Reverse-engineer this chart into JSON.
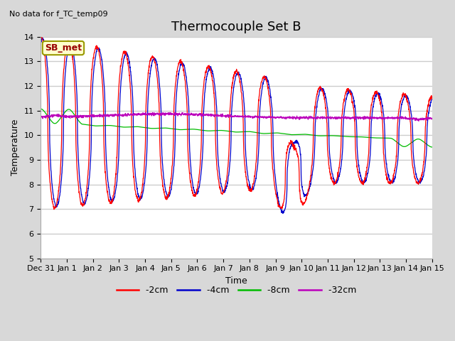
{
  "title": "Thermocouple Set B",
  "xlabel": "Time",
  "ylabel": "Temperature",
  "top_left_note": "No data for f_TC_temp09",
  "legend_box_label": "SB_met",
  "ylim": [
    5.0,
    14.0
  ],
  "yticks": [
    5.0,
    6.0,
    7.0,
    8.0,
    9.0,
    10.0,
    11.0,
    12.0,
    13.0,
    14.0
  ],
  "xtick_labels": [
    "Dec 31",
    "Jan 1",
    "Jan 2",
    "Jan 3",
    "Jan 4",
    "Jan 5",
    "Jan 6",
    "Jan 7",
    "Jan 8",
    "Jan 9",
    "Jan 10",
    "Jan 11",
    "Jan 12",
    "Jan 13",
    "Jan 14",
    "Jan 15"
  ],
  "series_colors": {
    "-2cm": "#ff0000",
    "-4cm": "#0000cc",
    "-8cm": "#00bb00",
    "-32cm": "#bb00bb"
  },
  "fig_bg_color": "#d8d8d8",
  "plot_bg_color": "#ffffff",
  "grid_color": "#cccccc",
  "legend_box_bg": "#ffffcc",
  "legend_box_edge": "#999900",
  "legend_box_text_color": "#990000",
  "title_fontsize": 13,
  "axis_label_fontsize": 9,
  "tick_fontsize": 8,
  "note_fontsize": 8,
  "n_points": 2016,
  "days": 14
}
